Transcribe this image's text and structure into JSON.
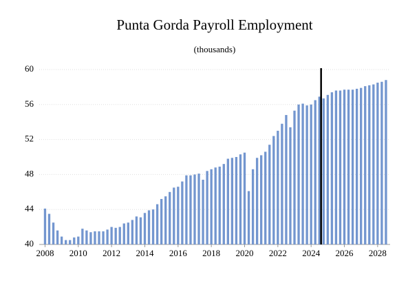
{
  "chart_data": {
    "type": "bar",
    "title": "Punta Gorda Payroll Employment",
    "subtitle": "(thousands)",
    "x": [
      2008,
      2008.25,
      2008.5,
      2008.75,
      2009,
      2009.25,
      2009.5,
      2009.75,
      2010,
      2010.25,
      2010.5,
      2010.75,
      2011,
      2011.25,
      2011.5,
      2011.75,
      2012,
      2012.25,
      2012.5,
      2012.75,
      2013,
      2013.25,
      2013.5,
      2013.75,
      2014,
      2014.25,
      2014.5,
      2014.75,
      2015,
      2015.25,
      2015.5,
      2015.75,
      2016,
      2016.25,
      2016.5,
      2016.75,
      2017,
      2017.25,
      2017.5,
      2017.75,
      2018,
      2018.25,
      2018.5,
      2018.75,
      2019,
      2019.25,
      2019.5,
      2019.75,
      2020,
      2020.25,
      2020.5,
      2020.75,
      2021,
      2021.25,
      2021.5,
      2021.75,
      2022,
      2022.25,
      2022.5,
      2022.75,
      2023,
      2023.25,
      2023.5,
      2023.75,
      2024,
      2024.25,
      2024.5,
      2024.75,
      2025,
      2025.25,
      2025.5,
      2025.75,
      2026,
      2026.25,
      2026.5,
      2026.75,
      2027,
      2027.25,
      2027.5,
      2027.75,
      2028,
      2028.25,
      2028.5
    ],
    "values": [
      44.1,
      43.5,
      42.5,
      41.6,
      40.9,
      40.5,
      40.5,
      40.8,
      40.9,
      41.8,
      41.6,
      41.4,
      41.5,
      41.5,
      41.5,
      41.7,
      42.0,
      41.9,
      42.0,
      42.4,
      42.5,
      42.8,
      43.2,
      43.1,
      43.6,
      43.9,
      44.0,
      44.6,
      45.2,
      45.5,
      46.0,
      46.5,
      46.6,
      47.2,
      47.9,
      47.9,
      48.0,
      48.1,
      47.4,
      48.4,
      48.6,
      48.8,
      48.9,
      49.2,
      49.8,
      49.9,
      50.0,
      50.3,
      50.5,
      46.1,
      48.6,
      49.9,
      50.2,
      50.6,
      51.4,
      52.4,
      53.0,
      53.8,
      54.8,
      53.4,
      55.3,
      56.0,
      56.1,
      55.9,
      56.0,
      56.5,
      56.9,
      56.7,
      57.1,
      57.4,
      57.6,
      57.6,
      57.7,
      57.7,
      57.7,
      57.8,
      57.9,
      58.1,
      58.2,
      58.3,
      58.5,
      58.6,
      58.8
    ],
    "color": "#7396cf",
    "vline": 2024.6,
    "xlim": [
      2007.65,
      2028.75
    ],
    "xticks": [
      2008,
      2010,
      2012,
      2014,
      2016,
      2018,
      2020,
      2022,
      2024,
      2026,
      2028
    ],
    "ylim": [
      40,
      60
    ],
    "yticks": [
      40,
      44,
      48,
      52,
      56,
      60
    ],
    "grid": true
  }
}
